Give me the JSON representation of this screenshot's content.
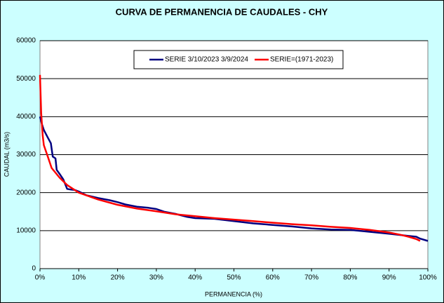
{
  "chart_data": {
    "type": "line",
    "title": "CURVA DE PERMANENCIA DE CAUDALES - CHY",
    "xlabel": "PERMANENCIA (%)",
    "ylabel": "CAUDAL (m3/s)",
    "xlim": [
      0,
      100
    ],
    "ylim": [
      0,
      60000
    ],
    "xticks": [
      {
        "value": 0,
        "label": "0%"
      },
      {
        "value": 10,
        "label": "10%"
      },
      {
        "value": 20,
        "label": "20%"
      },
      {
        "value": 30,
        "label": "30%"
      },
      {
        "value": 40,
        "label": "40%"
      },
      {
        "value": 50,
        "label": "50%"
      },
      {
        "value": 60,
        "label": "60%"
      },
      {
        "value": 70,
        "label": "70%"
      },
      {
        "value": 80,
        "label": "80%"
      },
      {
        "value": 90,
        "label": "90%"
      },
      {
        "value": 100,
        "label": "100%"
      }
    ],
    "yticks": [
      0,
      10000,
      20000,
      30000,
      40000,
      50000,
      60000
    ],
    "grid": true,
    "legend": "top",
    "series": [
      {
        "name": "SERIE 3/10/2023 3/9/2024",
        "color": "#000080",
        "x": [
          0,
          0.5,
          1,
          2,
          2.8,
          3.3,
          4,
          4.3,
          5,
          6,
          7,
          8,
          9,
          10,
          12,
          15,
          18,
          20,
          22,
          25,
          28,
          30,
          32,
          35,
          38,
          40,
          45,
          50,
          55,
          60,
          65,
          70,
          75,
          80,
          85,
          90,
          95,
          97,
          98,
          100
        ],
        "values": [
          40000,
          38000,
          36500,
          34500,
          33000,
          29500,
          29000,
          26000,
          25000,
          23500,
          21000,
          20800,
          20700,
          20300,
          19300,
          18600,
          18000,
          17500,
          16900,
          16300,
          16000,
          15700,
          15000,
          14400,
          13600,
          13300,
          13100,
          12500,
          11900,
          11500,
          11100,
          10600,
          10300,
          10200,
          9700,
          9200,
          8600,
          8400,
          7900,
          7300
        ]
      },
      {
        "name": "SERIE=(1971-2023)",
        "color": "#ff0000",
        "x": [
          0,
          0.3,
          0.7,
          1,
          2,
          3,
          5,
          7,
          10,
          15,
          20,
          25,
          30,
          35,
          40,
          45,
          50,
          55,
          60,
          65,
          70,
          75,
          80,
          85,
          90,
          93,
          95,
          97,
          98
        ],
        "values": [
          51000,
          41000,
          35000,
          32500,
          29500,
          26500,
          24000,
          22000,
          20000,
          18200,
          16800,
          15800,
          15100,
          14300,
          13800,
          13300,
          12900,
          12500,
          12100,
          11700,
          11400,
          11000,
          10700,
          10200,
          9500,
          8900,
          8400,
          7800,
          7300
        ]
      }
    ]
  }
}
